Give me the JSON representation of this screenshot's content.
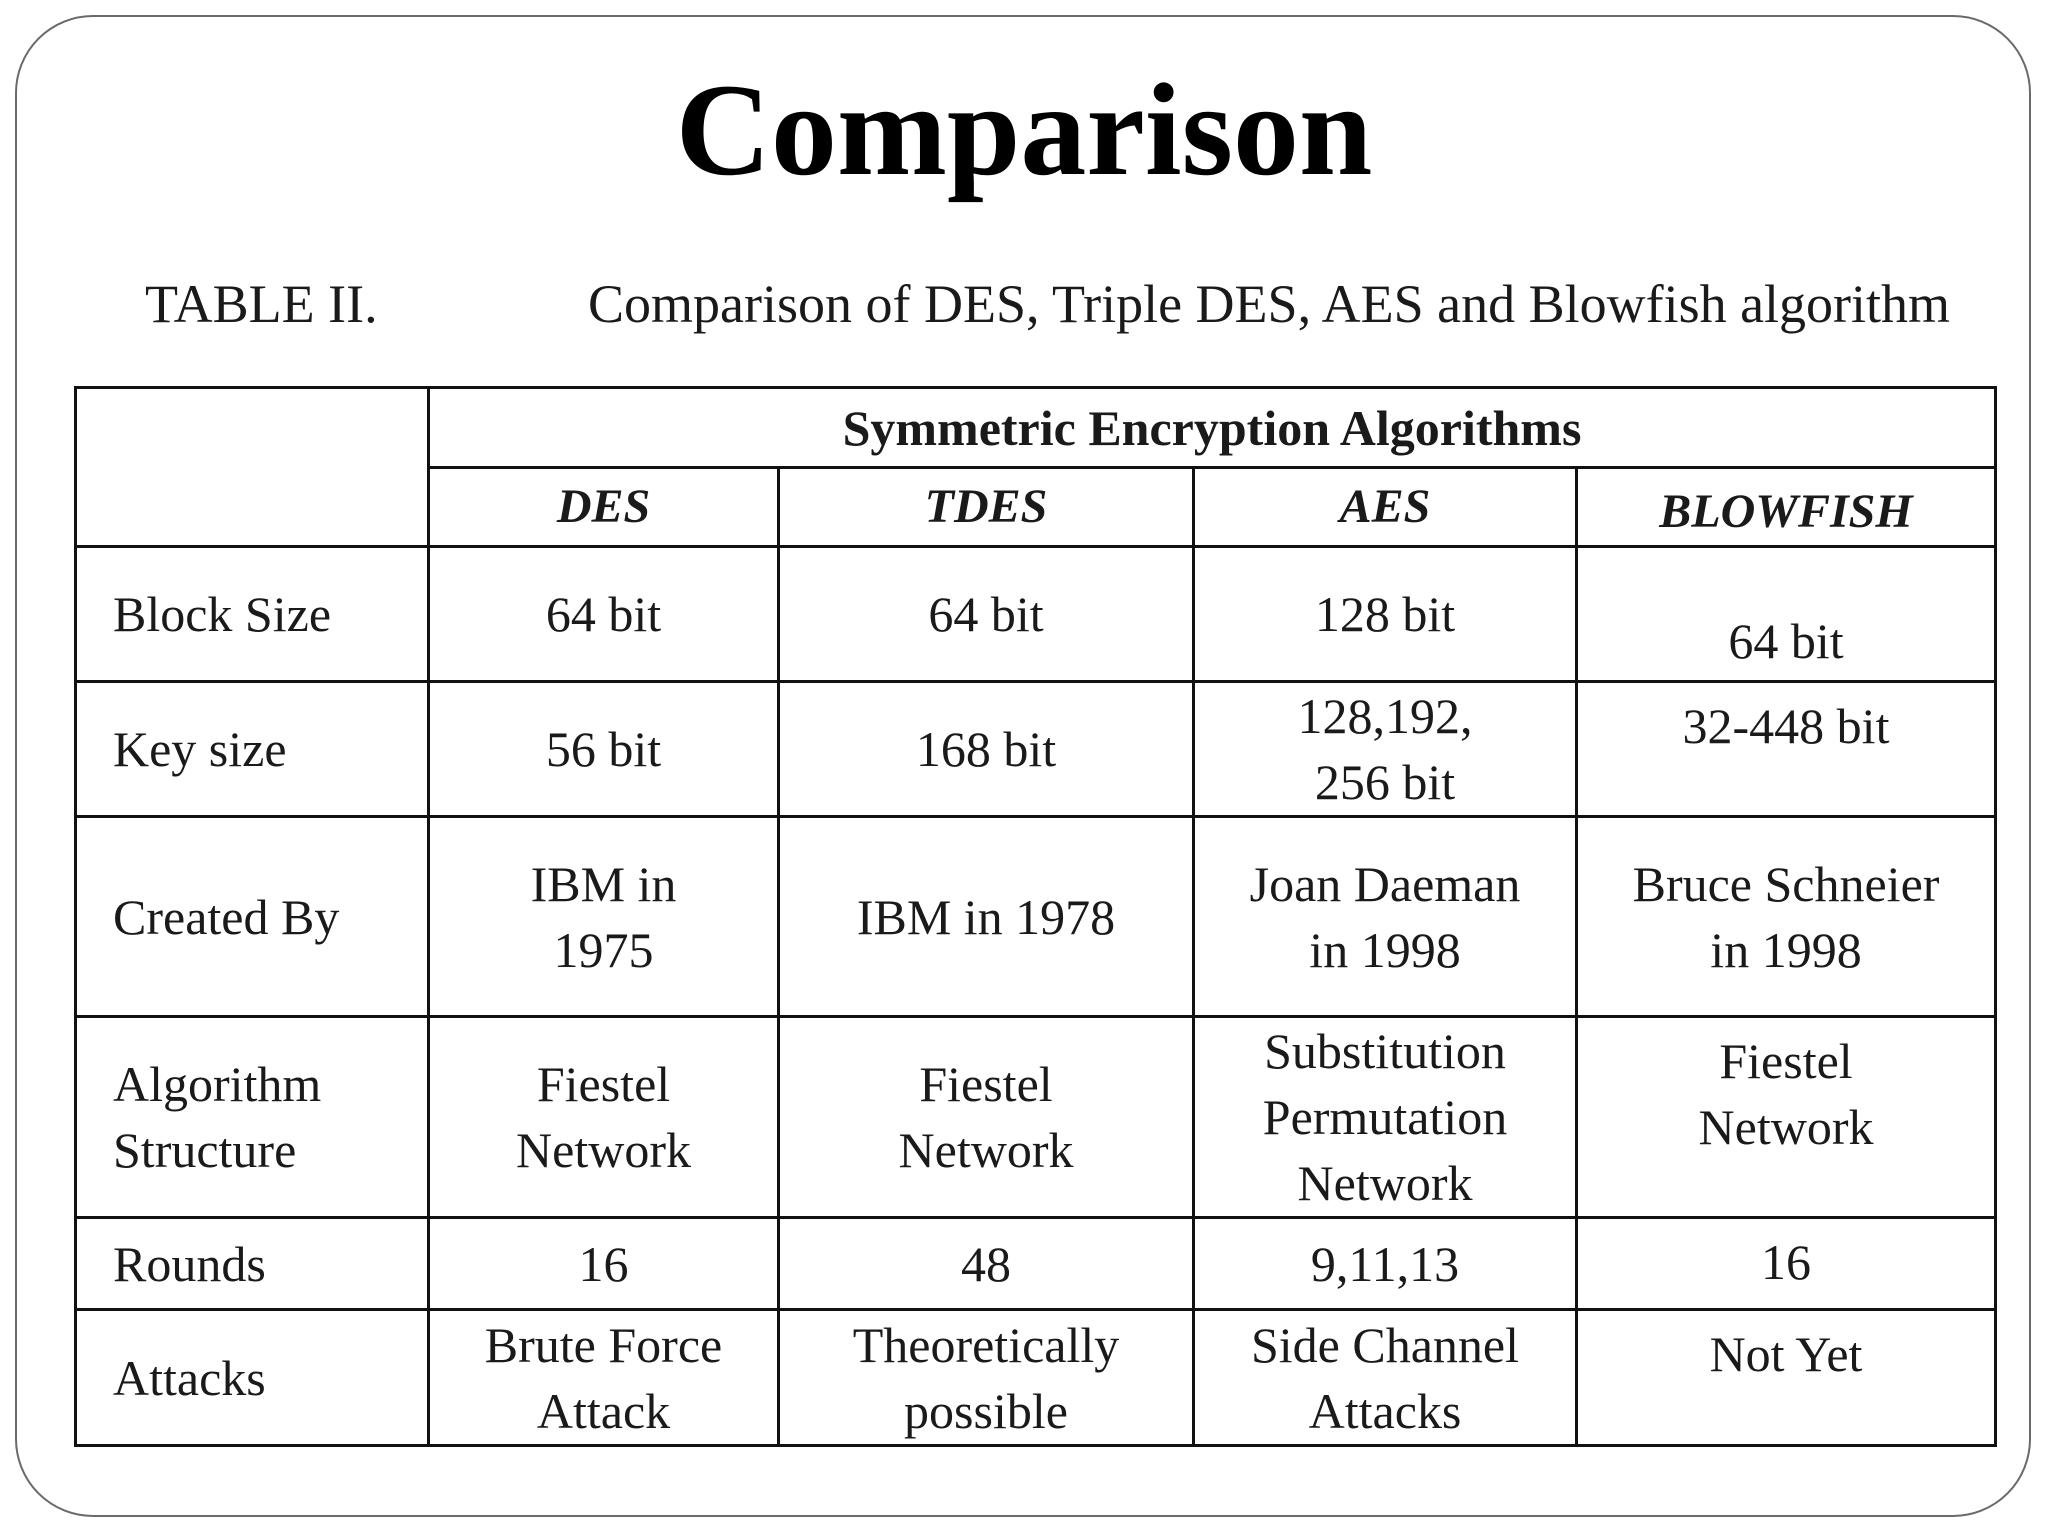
{
  "slide": {
    "title": "Comparison"
  },
  "caption": {
    "label": "TABLE II.",
    "text": "Comparison of DES, Triple DES, AES and Blowfish algorithm"
  },
  "table": {
    "group_header": "Symmetric Encryption Algorithms",
    "columns": [
      "DES",
      "TDES",
      "AES",
      "BLOWFISH"
    ],
    "rows": [
      {
        "label": "Block Size",
        "values": [
          "64 bit",
          "64 bit",
          "128 bit",
          "64 bit"
        ]
      },
      {
        "label": "Key size",
        "values": [
          "56 bit",
          "168 bit",
          "128,192, 256 bit",
          "32-448 bit"
        ]
      },
      {
        "label": "Created By",
        "values": [
          "IBM in 1975",
          "IBM in 1978",
          "Joan Daeman in 1998",
          "Bruce Schneier in 1998"
        ]
      },
      {
        "label": "Algorithm Structure",
        "values": [
          "Fiestel Network",
          "Fiestel Network",
          "Substitution Permutation Network",
          "Fiestel Network"
        ]
      },
      {
        "label": "Rounds",
        "values": [
          "16",
          "48",
          "9,11,13",
          "16"
        ]
      },
      {
        "label": "Attacks",
        "values": [
          "Brute Force Attack",
          "Theoretically possible",
          "Side Channel Attacks",
          "Not Yet"
        ]
      }
    ]
  }
}
